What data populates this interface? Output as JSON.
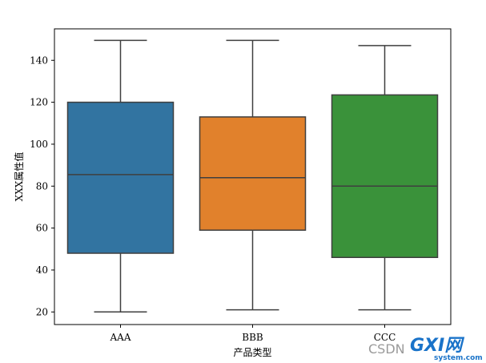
{
  "chart_data": {
    "type": "boxplot",
    "title": "",
    "xlabel": "产品类型",
    "ylabel": "XXX属性值",
    "categories": [
      "AAA",
      "BBB",
      "CCC"
    ],
    "ylim": [
      14,
      155
    ],
    "yticks": [
      20,
      40,
      60,
      80,
      100,
      120,
      140
    ],
    "grid": false,
    "series": [
      {
        "category": "AAA",
        "whisker_low": 20,
        "q1": 48,
        "median": 85.5,
        "q3": 120,
        "whisker_high": 149.5,
        "color": "#3274a1"
      },
      {
        "category": "BBB",
        "whisker_low": 21,
        "q1": 59,
        "median": 84,
        "q3": 113,
        "whisker_high": 149.5,
        "color": "#e1812c"
      },
      {
        "category": "CCC",
        "whisker_low": 21,
        "q1": 46,
        "median": 80,
        "q3": 123.5,
        "whisker_high": 147,
        "color": "#3a923a"
      }
    ]
  },
  "watermark": {
    "csdn_text": "CSDN",
    "gxi_text": "GXI网",
    "site_text": "system.com"
  }
}
